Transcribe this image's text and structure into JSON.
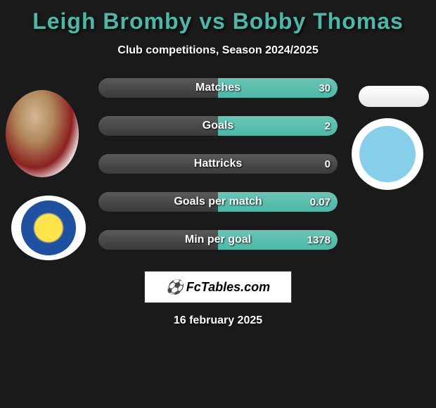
{
  "header": {
    "title": "Leigh Bromby vs Bobby Thomas",
    "subtitle": "Club competitions, Season 2024/2025",
    "title_color": "#4db8a8"
  },
  "stats": [
    {
      "label": "Matches",
      "left_value": "",
      "right_value": "30",
      "left_fill_pct": 0,
      "right_fill_pct": 100
    },
    {
      "label": "Goals",
      "left_value": "",
      "right_value": "2",
      "left_fill_pct": 0,
      "right_fill_pct": 100
    },
    {
      "label": "Hattricks",
      "left_value": "",
      "right_value": "0",
      "left_fill_pct": 0,
      "right_fill_pct": 0
    },
    {
      "label": "Goals per match",
      "left_value": "",
      "right_value": "0.07",
      "left_fill_pct": 0,
      "right_fill_pct": 100
    },
    {
      "label": "Min per goal",
      "left_value": "",
      "right_value": "1378",
      "left_fill_pct": 0,
      "right_fill_pct": 100
    }
  ],
  "footer": {
    "brand": "FcTables.com",
    "date": "16 february 2025"
  },
  "styling": {
    "background_color": "#1a1a1a",
    "bar_bg_color": "#4a4a4a",
    "left_fill_color": "#e0e0e0",
    "right_fill_color": "#4db8a8",
    "text_color": "#ffffff",
    "text_shadow": "1px 1px 2px rgba(0,0,0,0.9)"
  }
}
